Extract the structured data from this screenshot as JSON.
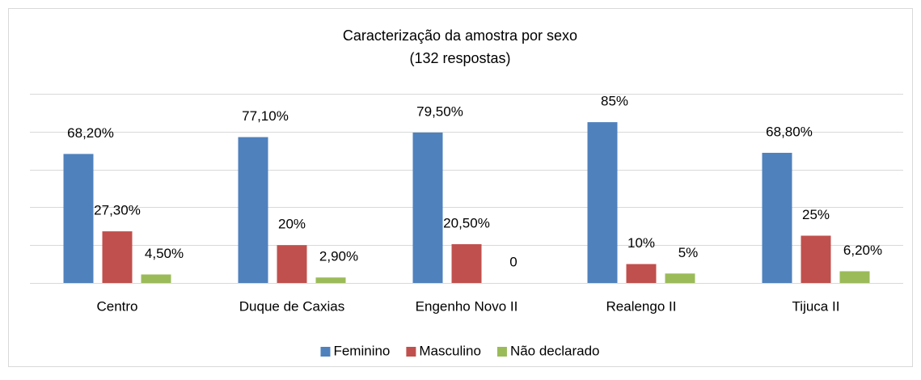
{
  "chart_data": {
    "type": "bar",
    "title": "Caracterização da amostra por sexo",
    "subtitle": "(132 respostas)",
    "categories": [
      "Centro",
      "Duque de Caxias",
      "Engenho Novo II",
      "Realengo II",
      "Tijuca II"
    ],
    "series": [
      {
        "name": "Feminino",
        "color": "#4f81bd",
        "values": [
          68.2,
          77.1,
          79.5,
          85,
          68.8
        ],
        "value_labels": [
          "68,20%",
          "77,10%",
          "79,50%",
          "85%",
          "68,80%"
        ]
      },
      {
        "name": "Masculino",
        "color": "#c0504d",
        "values": [
          27.3,
          20,
          20.5,
          10,
          25
        ],
        "value_labels": [
          "27,30%",
          "20%",
          "20,50%",
          "10%",
          "25%"
        ]
      },
      {
        "name": "Não declarado",
        "color": "#9bbb59",
        "values": [
          4.5,
          2.9,
          0,
          5,
          6.2
        ],
        "value_labels": [
          "4,50%",
          "2,90%",
          "0",
          "5%",
          "6,20%"
        ]
      }
    ],
    "ylim": [
      0,
      100
    ],
    "yticks": [
      0,
      20,
      40,
      60,
      80,
      100
    ],
    "grid": true,
    "legend": "bottom"
  }
}
